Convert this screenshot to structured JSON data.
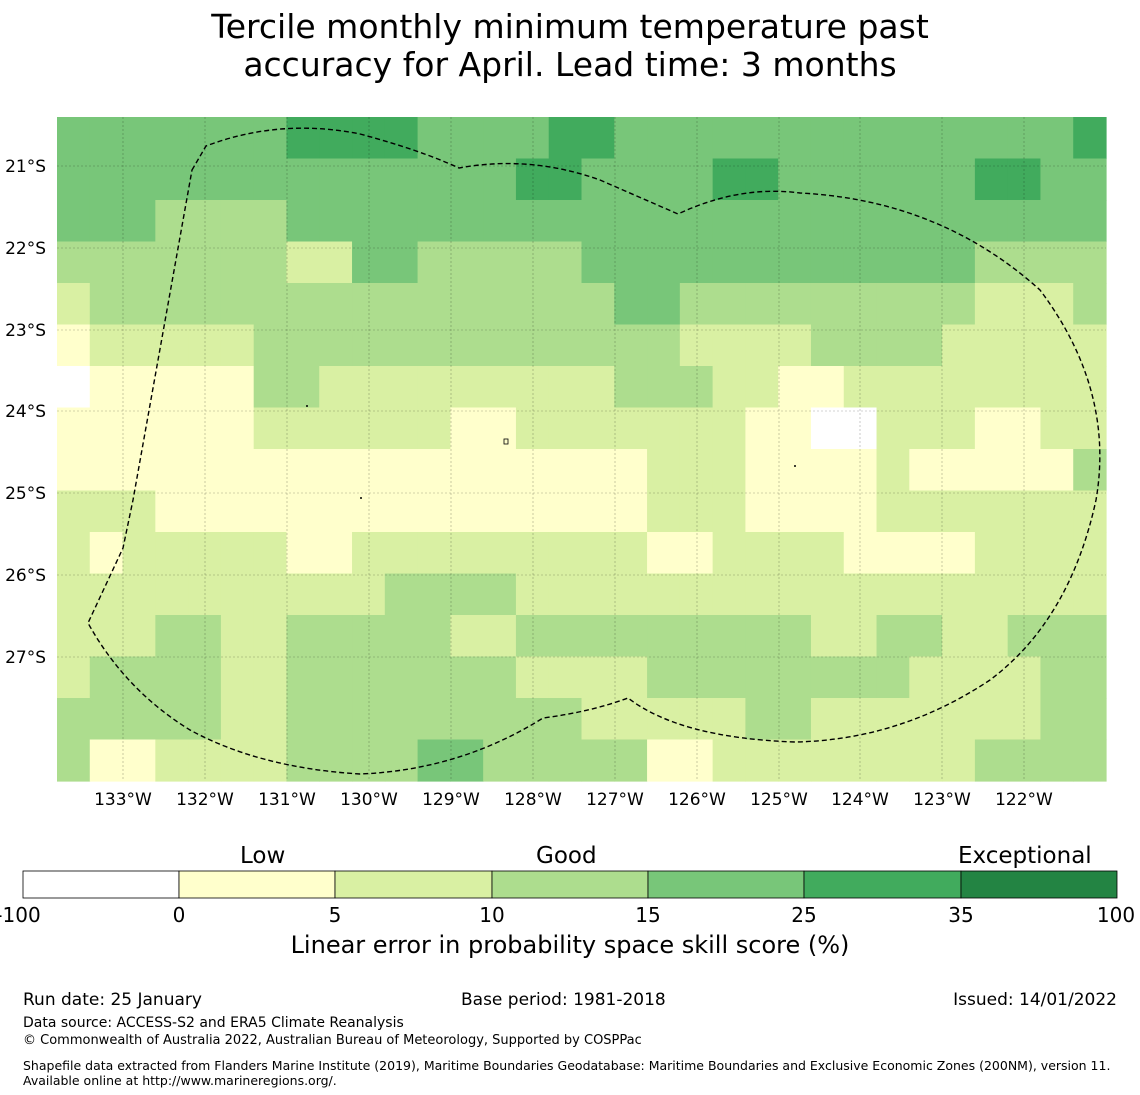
{
  "title": {
    "line1": "Tercile monthly minimum temperature past",
    "line2": "accuracy for April. Lead time: 3 months"
  },
  "map": {
    "lon_labels": [
      "133°W",
      "132°W",
      "131°W",
      "130°W",
      "129°W",
      "128°W",
      "127°W",
      "126°W",
      "125°W",
      "124°W",
      "123°W",
      "122°W"
    ],
    "lat_labels": [
      "21°S",
      "22°S",
      "23°S",
      "24°S",
      "25°S",
      "26°S",
      "27°S"
    ],
    "legend_colors": [
      "#ffffff",
      "#ffffcc",
      "#d9f0a3",
      "#addd8e",
      "#78c679",
      "#41ab5d",
      "#238443"
    ],
    "grid": [
      [
        4,
        4,
        4,
        4,
        4,
        4,
        4,
        5,
        5,
        5,
        5,
        4,
        4,
        4,
        4,
        5,
        5,
        4,
        4,
        4,
        4,
        4,
        4,
        4,
        4,
        4,
        4,
        4,
        4,
        4,
        4,
        5
      ],
      [
        4,
        4,
        4,
        4,
        4,
        4,
        4,
        4,
        4,
        4,
        4,
        4,
        4,
        4,
        5,
        5,
        4,
        4,
        4,
        4,
        5,
        5,
        4,
        4,
        4,
        4,
        4,
        4,
        5,
        5,
        4,
        4
      ],
      [
        4,
        4,
        4,
        3,
        3,
        3,
        3,
        4,
        4,
        4,
        4,
        4,
        4,
        4,
        4,
        4,
        4,
        4,
        4,
        4,
        4,
        4,
        4,
        4,
        4,
        4,
        4,
        4,
        4,
        4,
        4,
        4
      ],
      [
        3,
        3,
        3,
        3,
        3,
        3,
        3,
        2,
        2,
        4,
        4,
        3,
        3,
        3,
        3,
        3,
        4,
        4,
        4,
        4,
        4,
        4,
        4,
        4,
        4,
        4,
        4,
        4,
        3,
        3,
        3,
        3
      ],
      [
        2,
        3,
        3,
        3,
        3,
        3,
        3,
        3,
        3,
        3,
        3,
        3,
        3,
        3,
        3,
        3,
        3,
        4,
        4,
        3,
        3,
        3,
        3,
        3,
        3,
        3,
        3,
        3,
        2,
        2,
        2,
        3
      ],
      [
        1,
        2,
        2,
        2,
        2,
        2,
        3,
        3,
        3,
        3,
        3,
        3,
        3,
        3,
        3,
        3,
        3,
        3,
        3,
        2,
        2,
        2,
        2,
        3,
        3,
        3,
        3,
        2,
        2,
        2,
        2,
        2
      ],
      [
        0,
        1,
        1,
        1,
        1,
        1,
        3,
        3,
        2,
        2,
        2,
        2,
        2,
        2,
        2,
        2,
        2,
        3,
        3,
        3,
        2,
        2,
        1,
        1,
        2,
        2,
        2,
        2,
        2,
        2,
        2,
        2
      ],
      [
        1,
        1,
        1,
        1,
        1,
        1,
        2,
        2,
        2,
        2,
        2,
        2,
        1,
        1,
        2,
        2,
        2,
        2,
        2,
        2,
        2,
        1,
        1,
        0,
        0,
        2,
        2,
        2,
        1,
        1,
        2,
        2
      ],
      [
        1,
        1,
        1,
        1,
        1,
        1,
        1,
        1,
        1,
        1,
        1,
        1,
        1,
        1,
        1,
        1,
        1,
        1,
        2,
        2,
        2,
        1,
        1,
        1,
        1,
        2,
        1,
        1,
        1,
        1,
        1,
        3
      ],
      [
        2,
        2,
        2,
        1,
        1,
        1,
        1,
        1,
        1,
        1,
        1,
        1,
        1,
        1,
        1,
        1,
        1,
        1,
        2,
        2,
        2,
        1,
        1,
        1,
        1,
        2,
        2,
        2,
        2,
        2,
        2,
        2
      ],
      [
        2,
        1,
        2,
        2,
        2,
        2,
        2,
        1,
        1,
        2,
        2,
        2,
        2,
        2,
        2,
        2,
        2,
        2,
        1,
        1,
        2,
        2,
        2,
        2,
        1,
        1,
        1,
        1,
        2,
        2,
        2,
        2
      ],
      [
        2,
        2,
        2,
        2,
        2,
        2,
        2,
        2,
        2,
        2,
        3,
        3,
        3,
        3,
        2,
        2,
        2,
        2,
        2,
        2,
        2,
        2,
        2,
        2,
        2,
        2,
        2,
        2,
        2,
        2,
        2,
        2
      ],
      [
        2,
        2,
        2,
        3,
        3,
        2,
        2,
        3,
        3,
        3,
        3,
        3,
        2,
        2,
        3,
        3,
        3,
        3,
        3,
        3,
        3,
        3,
        3,
        2,
        2,
        3,
        3,
        2,
        2,
        3,
        3,
        3
      ],
      [
        2,
        3,
        3,
        3,
        3,
        2,
        2,
        3,
        3,
        3,
        3,
        3,
        3,
        3,
        2,
        2,
        2,
        2,
        3,
        3,
        3,
        3,
        3,
        3,
        3,
        3,
        2,
        2,
        2,
        2,
        3,
        3
      ],
      [
        3,
        3,
        3,
        3,
        3,
        2,
        2,
        3,
        3,
        3,
        3,
        3,
        3,
        3,
        3,
        3,
        2,
        2,
        2,
        2,
        2,
        3,
        3,
        2,
        2,
        2,
        2,
        2,
        2,
        2,
        3,
        3
      ],
      [
        3,
        1,
        1,
        2,
        2,
        2,
        2,
        3,
        3,
        3,
        3,
        4,
        4,
        3,
        3,
        3,
        3,
        3,
        1,
        1,
        2,
        2,
        2,
        2,
        2,
        2,
        2,
        2,
        3,
        3,
        3,
        3
      ]
    ]
  },
  "colorbar": {
    "heading_low": "Low",
    "heading_good": "Good",
    "heading_exceptional": "Exceptional",
    "ticks": [
      "-100",
      "0",
      "5",
      "10",
      "15",
      "25",
      "35",
      "100"
    ],
    "label": "Linear error in probability space skill score (%)"
  },
  "footer": {
    "run_date": "Run date: 25 January",
    "base_period": "Base period: 1981-2018",
    "issued": "Issued: 14/01/2022",
    "data_source": "Data source: ACCESS-S2 and ERA5 Climate Reanalysis",
    "copyright": "© Commonwealth of Australia 2022, Australian Bureau of Meteorology, Supported by COSPPac",
    "shapefile": "Shapefile data extracted from Flanders Marine Institute (2019), Maritime Boundaries Geodatabase: Maritime Boundaries and Exclusive Economic Zones (200NM), version 11. Available online at http://www.marineregions.org/."
  }
}
